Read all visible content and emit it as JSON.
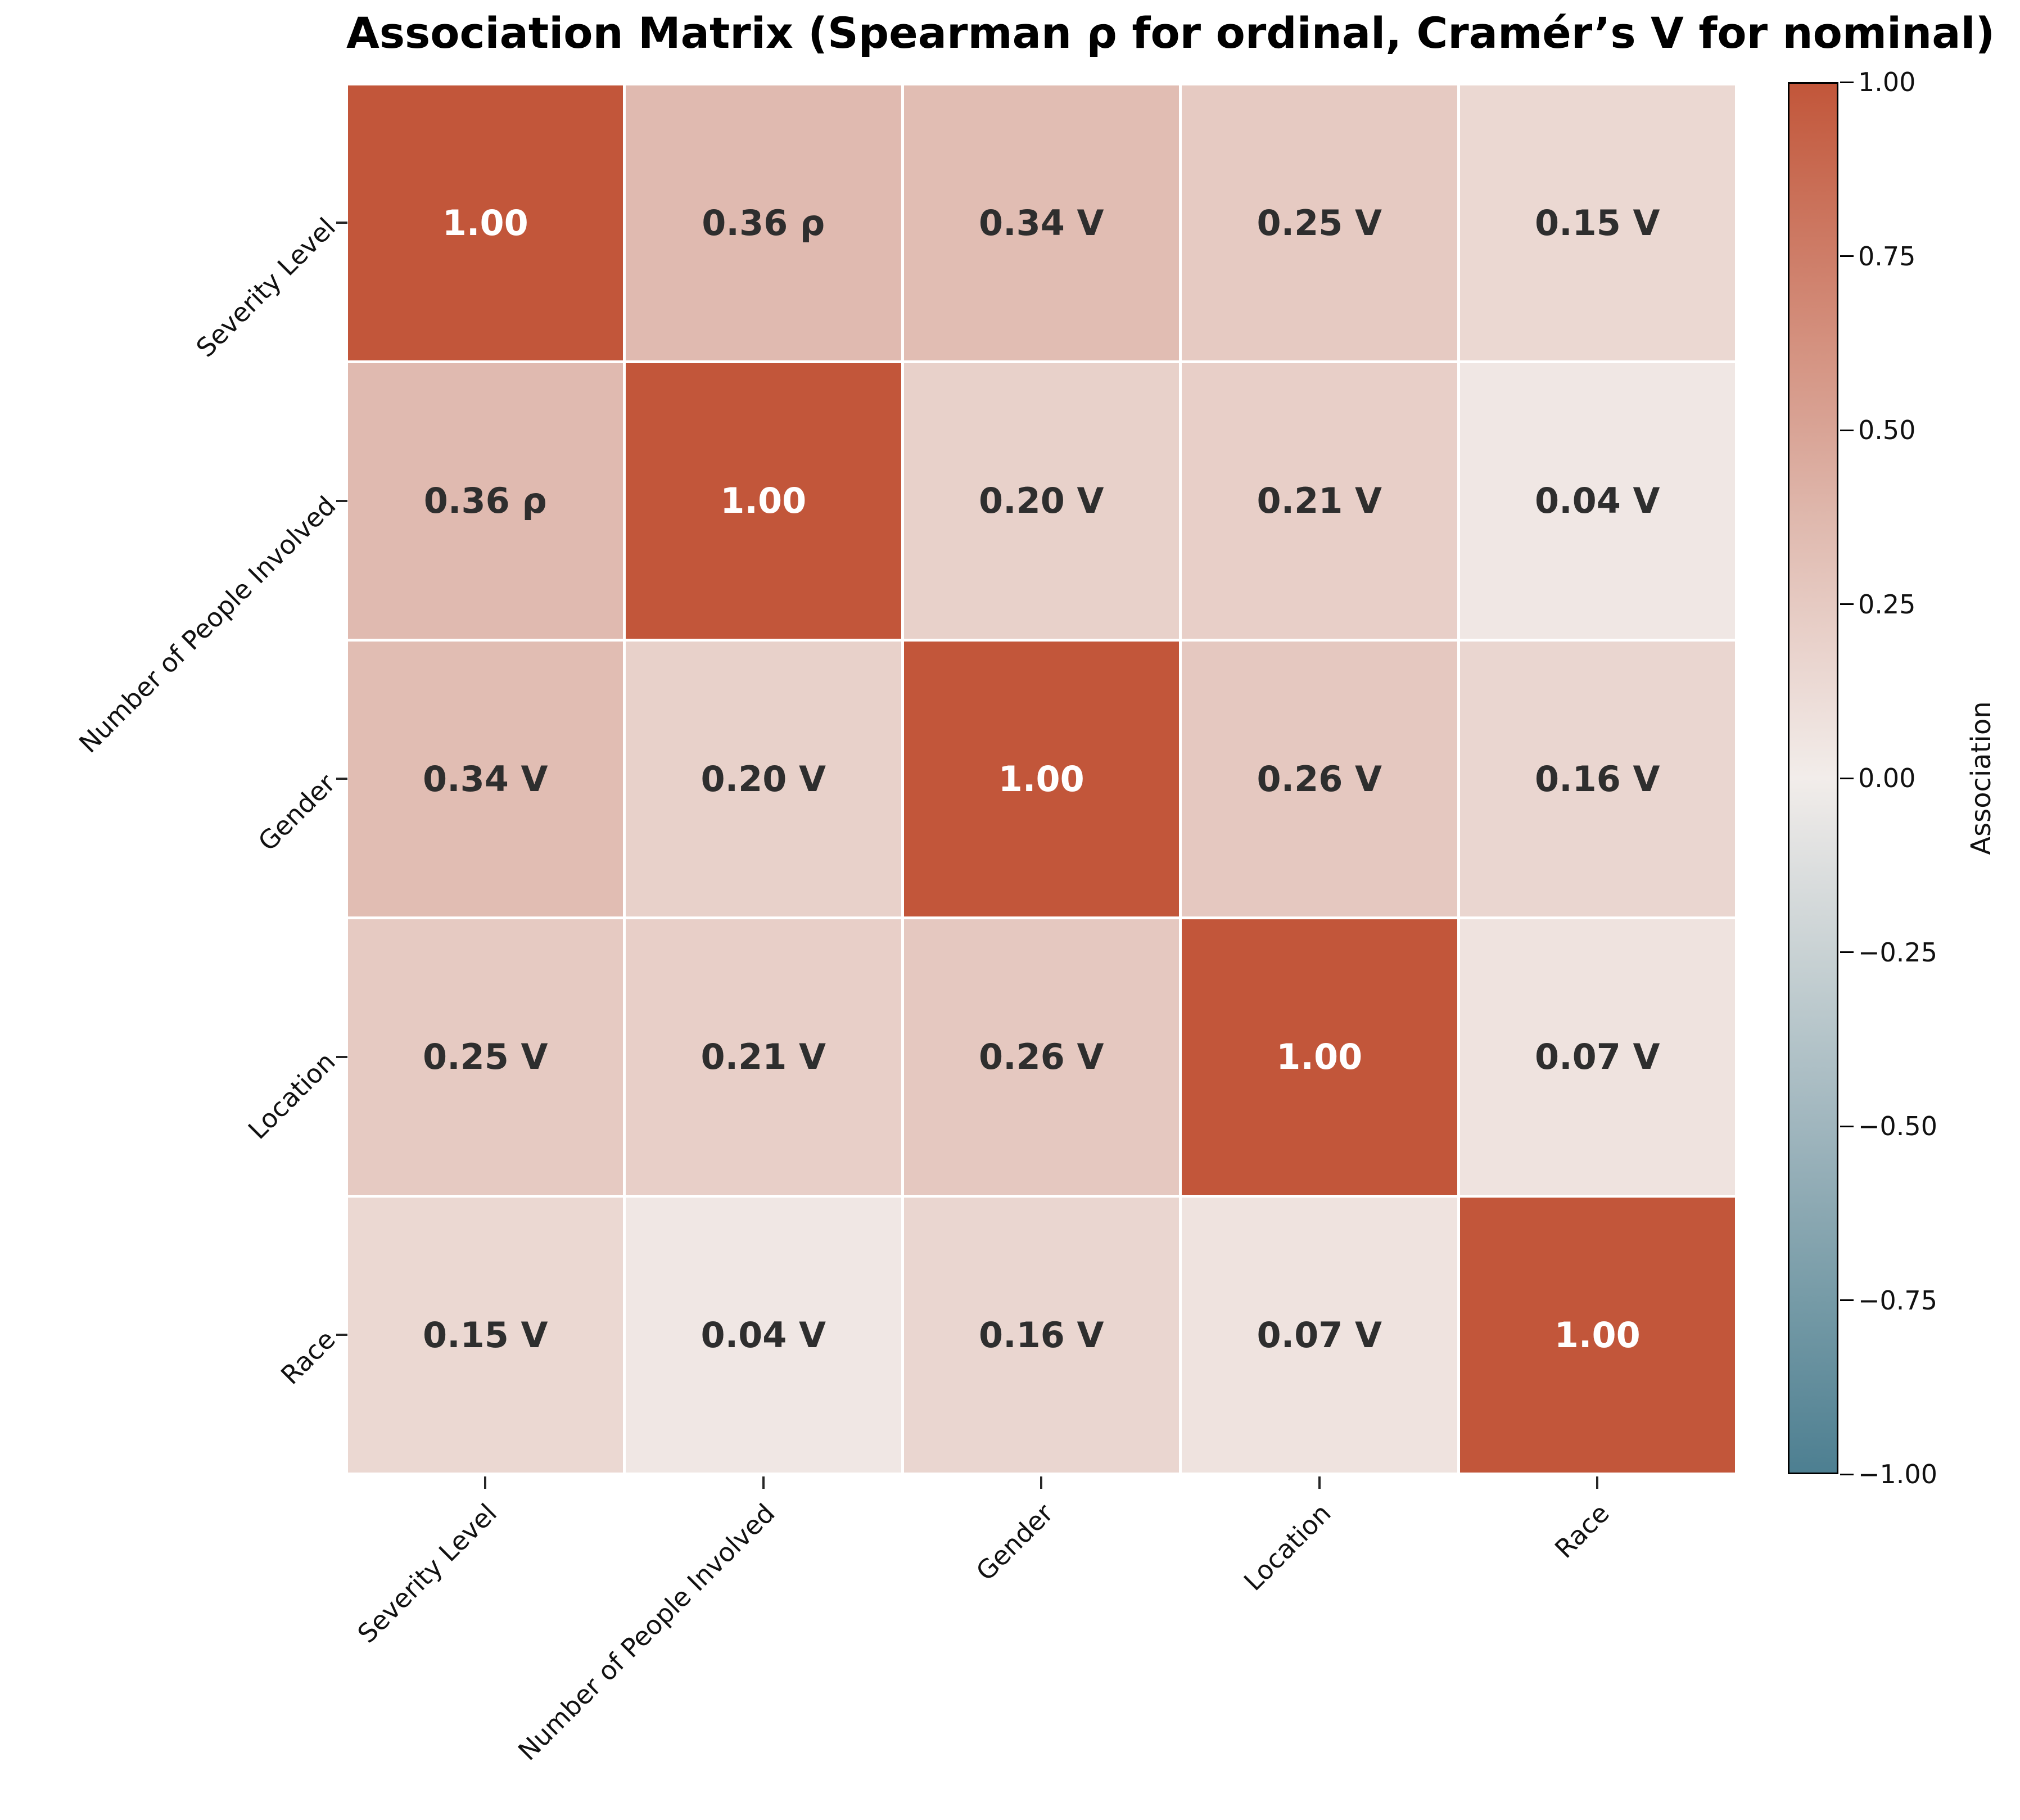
{
  "chart_data": {
    "type": "heatmap",
    "title": "Association Matrix (Spearman ρ for ordinal, Cramér’s V for nominal)",
    "categories": [
      "Severity Level",
      "Number of People Involved",
      "Gender",
      "Location",
      "Race"
    ],
    "values": [
      [
        1.0,
        0.36,
        0.34,
        0.25,
        0.15
      ],
      [
        0.36,
        1.0,
        0.2,
        0.21,
        0.04
      ],
      [
        0.34,
        0.2,
        1.0,
        0.26,
        0.16
      ],
      [
        0.25,
        0.21,
        0.26,
        1.0,
        0.07
      ],
      [
        0.15,
        0.04,
        0.16,
        0.07,
        1.0
      ]
    ],
    "cell_labels": [
      [
        "1.00",
        "0.36 ρ",
        "0.34 V",
        "0.25 V",
        "0.15 V"
      ],
      [
        "0.36 ρ",
        "1.00",
        "0.20 V",
        "0.21 V",
        "0.04 V"
      ],
      [
        "0.34 V",
        "0.20 V",
        "1.00",
        "0.26 V",
        "0.16 V"
      ],
      [
        "0.25 V",
        "0.21 V",
        "0.26 V",
        "1.00",
        "0.07 V"
      ],
      [
        "0.15 V",
        "0.04 V",
        "0.16 V",
        "0.07 V",
        "1.00"
      ]
    ],
    "colorbar": {
      "label": "Association",
      "range": [
        -1,
        1
      ],
      "tick_labels": [
        "1.00",
        "0.75",
        "0.50",
        "0.25",
        "0.00",
        "−0.25",
        "−0.50",
        "−0.75",
        "−1.00"
      ]
    },
    "colors": {
      "colormap_anchors": [
        {
          "v": -1.0,
          "hex": "#4d7f91"
        },
        {
          "v": 0.0,
          "hex": "#f2edea"
        },
        {
          "v": 0.36,
          "hex": "#e0bab0"
        },
        {
          "v": 1.0,
          "hex": "#c2563a"
        }
      ],
      "grid_line": "#ffffff",
      "text_dark": "#2e2e2e",
      "text_light": "#ffffff"
    },
    "layout_hints": {
      "legend_position": "right-colorbar",
      "x_tick_rotation_deg": 45,
      "y_tick_rotation_deg": 45,
      "grid": false
    }
  }
}
